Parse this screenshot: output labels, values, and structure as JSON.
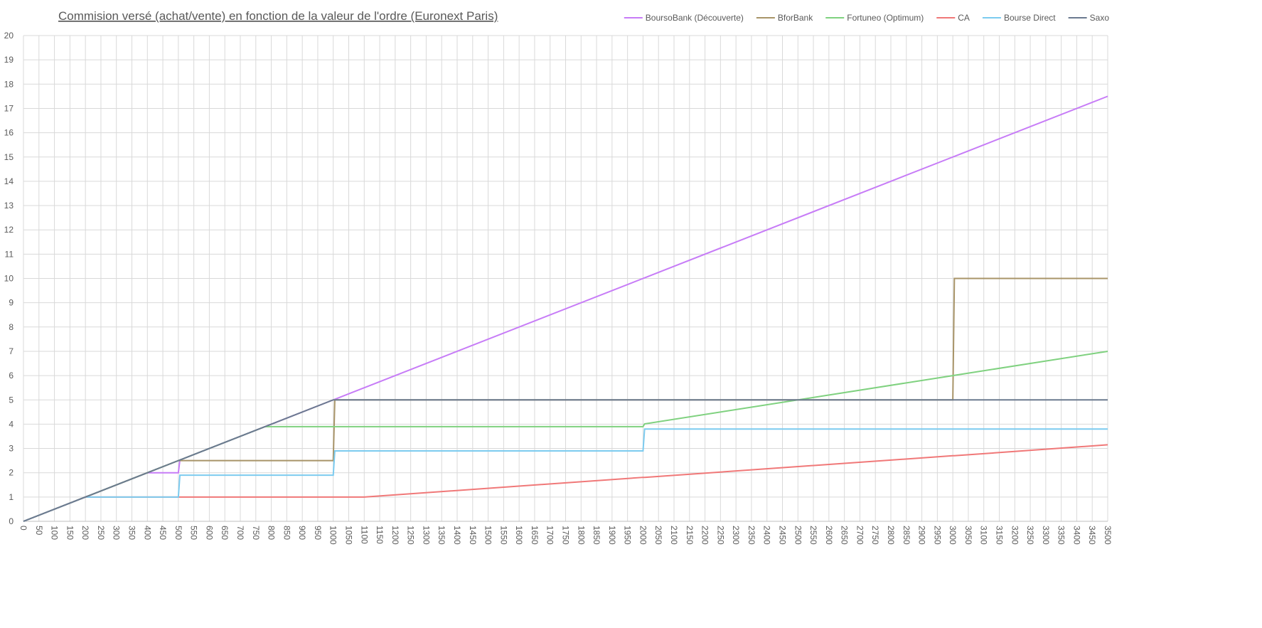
{
  "chart_data": {
    "type": "line",
    "title": "Commision versé (achat/vente) en fonction de la valeur de l'ordre (Euronext Paris)",
    "x": [
      0,
      200,
      400,
      500,
      505,
      780,
      800,
      1000,
      1005,
      1100,
      2000,
      2005,
      3000,
      3005,
      3500
    ],
    "series": [
      {
        "name": "BoursoBank (Découverte)",
        "color": "#c77cf7",
        "values": [
          0,
          1,
          2,
          2,
          2.525,
          3.9,
          4,
          5,
          5.025,
          5.5,
          10,
          10.025,
          15,
          15.025,
          17.5
        ]
      },
      {
        "name": "BforBank",
        "color": "#a89468",
        "values": [
          0,
          1,
          2,
          2.5,
          2.5,
          2.5,
          2.5,
          2.5,
          5,
          5,
          5,
          5,
          5,
          10,
          10
        ]
      },
      {
        "name": "Fortuneo (Optimum)",
        "color": "#7fd17f",
        "values": [
          0,
          1,
          2,
          2.5,
          2.525,
          3.9,
          3.9,
          3.9,
          3.9,
          3.9,
          3.9,
          4.01,
          6,
          6.01,
          7
        ]
      },
      {
        "name": "CA",
        "color": "#f07878",
        "values": [
          0,
          1,
          1,
          1,
          1,
          1,
          1,
          1,
          1,
          1,
          1.81,
          1.81,
          2.7,
          2.7,
          3.15
        ]
      },
      {
        "name": "Bourse Direct",
        "color": "#7ccbef",
        "values": [
          0,
          1,
          1,
          1,
          1.9,
          1.9,
          1.9,
          1.9,
          2.9,
          2.9,
          2.9,
          3.8,
          3.8,
          3.8,
          3.8
        ]
      },
      {
        "name": "Saxo",
        "color": "#6b7a8f",
        "values": [
          0,
          1,
          2,
          2.5,
          2.525,
          3.9,
          4,
          5,
          5,
          5,
          5,
          5,
          5,
          5,
          5
        ]
      }
    ],
    "xlim": [
      0,
      3500
    ],
    "xticks": [
      0,
      50,
      100,
      150,
      200,
      250,
      300,
      350,
      400,
      450,
      500,
      550,
      600,
      650,
      700,
      750,
      800,
      850,
      900,
      950,
      1000,
      1050,
      1100,
      1150,
      1200,
      1250,
      1300,
      1350,
      1400,
      1450,
      1500,
      1550,
      1600,
      1650,
      1700,
      1750,
      1800,
      1850,
      1900,
      1950,
      2000,
      2050,
      2100,
      2150,
      2200,
      2250,
      2300,
      2350,
      2400,
      2450,
      2500,
      2550,
      2600,
      2650,
      2700,
      2750,
      2800,
      2850,
      2900,
      2950,
      3000,
      3050,
      3100,
      3150,
      3200,
      3250,
      3300,
      3350,
      3400,
      3450,
      3500
    ],
    "ylim": [
      0,
      20
    ],
    "yticks": [
      0,
      1,
      2,
      3,
      4,
      5,
      6,
      7,
      8,
      9,
      10,
      11,
      12,
      13,
      14,
      15,
      16,
      17,
      18,
      19,
      20
    ],
    "grid": true,
    "legend": "top-right"
  }
}
